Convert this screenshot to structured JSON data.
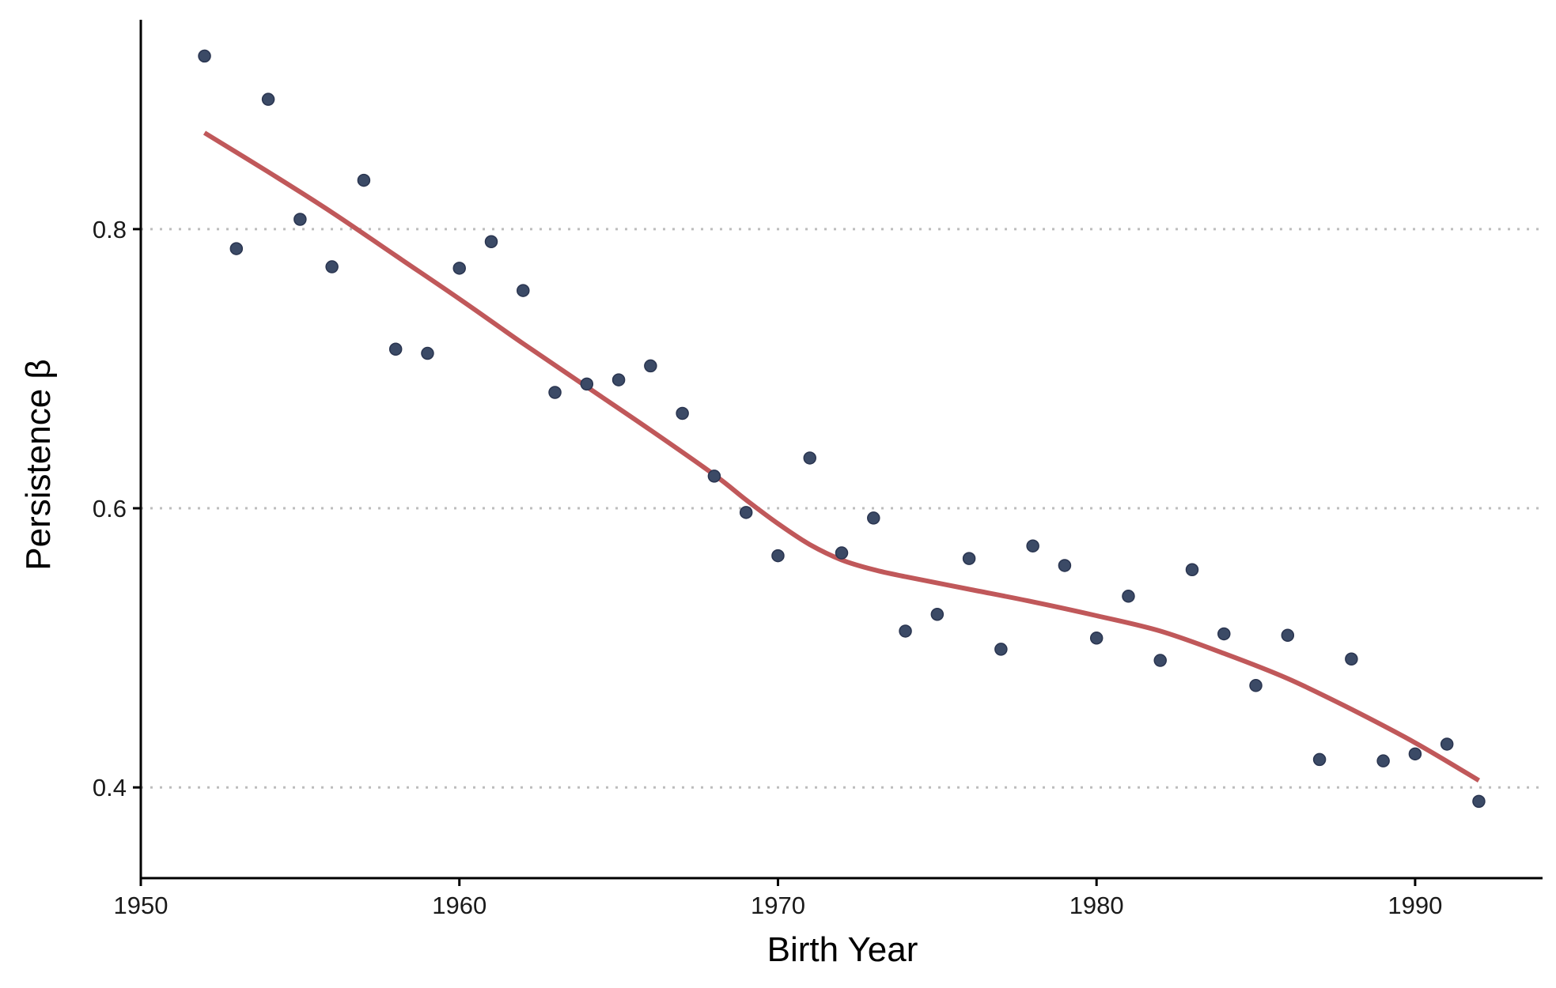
{
  "chart_data": {
    "type": "scatter",
    "title": "",
    "xlabel": "Birth Year",
    "ylabel": "Persistence β",
    "xlim": [
      1950,
      1994
    ],
    "ylim": [
      0.335,
      0.95
    ],
    "x_ticks": [
      1950,
      1960,
      1970,
      1980,
      1990
    ],
    "y_ticks": [
      0.4,
      0.6,
      0.8
    ],
    "x_tick_labels": [
      "1950",
      "1960",
      "1970",
      "1980",
      "1990"
    ],
    "y_tick_labels": [
      "0.4",
      "0.6",
      "0.8"
    ],
    "grid": "horizontal dotted at y ticks",
    "legend": "none",
    "colors": {
      "points": "#3b4a66",
      "trend": "#c0585a",
      "grid": "#bdbdbd",
      "axis": "#000000"
    },
    "series": [
      {
        "kind": "points",
        "x": [
          1952,
          1953,
          1954,
          1955,
          1956,
          1957,
          1958,
          1959,
          1960,
          1961,
          1962,
          1963,
          1964,
          1965,
          1966,
          1967,
          1968,
          1969,
          1970,
          1971,
          1972,
          1973,
          1974,
          1975,
          1976,
          1977,
          1978,
          1979,
          1980,
          1981,
          1982,
          1983,
          1984,
          1985,
          1986,
          1987,
          1988,
          1989,
          1990,
          1991,
          1992
        ],
        "y": [
          0.924,
          0.786,
          0.893,
          0.807,
          0.773,
          0.835,
          0.714,
          0.711,
          0.772,
          0.791,
          0.756,
          0.683,
          0.689,
          0.692,
          0.702,
          0.668,
          0.623,
          0.597,
          0.566,
          0.636,
          0.568,
          0.593,
          0.512,
          0.524,
          0.564,
          0.499,
          0.573,
          0.559,
          0.507,
          0.537,
          0.491,
          0.556,
          0.51,
          0.473,
          0.509,
          0.42,
          0.492,
          0.419,
          0.424,
          0.431,
          0.39
        ]
      },
      {
        "kind": "smooth",
        "x": [
          1952,
          1954,
          1956,
          1958,
          1960,
          1962,
          1964,
          1966,
          1968,
          1969,
          1970,
          1971,
          1972,
          1973,
          1974,
          1976,
          1978,
          1980,
          1982,
          1984,
          1986,
          1988,
          1990,
          1992
        ],
        "y": [
          0.869,
          0.841,
          0.812,
          0.781,
          0.75,
          0.718,
          0.687,
          0.656,
          0.624,
          0.606,
          0.589,
          0.574,
          0.563,
          0.556,
          0.551,
          0.542,
          0.533,
          0.523,
          0.512,
          0.496,
          0.478,
          0.456,
          0.432,
          0.405
        ]
      }
    ]
  }
}
